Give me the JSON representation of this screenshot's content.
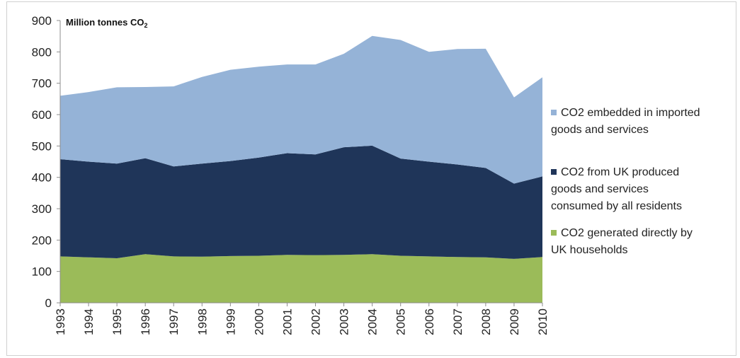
{
  "chart_data": {
    "type": "area",
    "stacked": true,
    "unit_label": "Million tonnes CO",
    "unit_subscript": "2",
    "ylim": [
      0,
      900
    ],
    "yticks": [
      0,
      100,
      200,
      300,
      400,
      500,
      600,
      700,
      800,
      900
    ],
    "x": [
      "1993",
      "1994",
      "1995",
      "1996",
      "1997",
      "1998",
      "1999",
      "2000",
      "2001",
      "2002",
      "2003",
      "2004",
      "2005",
      "2006",
      "2007",
      "2008",
      "2009",
      "2010"
    ],
    "series": [
      {
        "name": "CO2 generated directly by UK households",
        "color": "#9bbb59",
        "values": [
          148,
          145,
          142,
          155,
          148,
          147,
          149,
          150,
          153,
          152,
          153,
          155,
          150,
          148,
          146,
          145,
          140,
          146
        ]
      },
      {
        "name": "CO2 from UK produced goods and services consumed by all residents",
        "color": "#1f3559",
        "values": [
          310,
          305,
          302,
          306,
          287,
          297,
          303,
          313,
          324,
          321,
          343,
          346,
          310,
          302,
          295,
          285,
          240,
          257
        ]
      },
      {
        "name": "CO2 embedded in imported goods and services",
        "color": "#95b3d7",
        "values": [
          202,
          222,
          243,
          227,
          255,
          276,
          291,
          290,
          283,
          287,
          298,
          350,
          378,
          350,
          368,
          380,
          275,
          316
        ]
      }
    ],
    "legend_position": "right",
    "grid": false
  }
}
